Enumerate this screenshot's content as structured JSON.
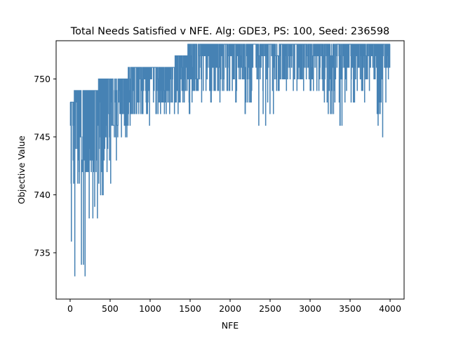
{
  "chart_data": {
    "type": "line",
    "title": "Total Needs Satisfied v NFE. Alg: GDE3, PS: 100, Seed: 236598",
    "xlabel": "NFE",
    "ylabel": "Objective Value",
    "xlim": [
      -175,
      4175
    ],
    "ylim": [
      731,
      753.3
    ],
    "xticks": [
      0,
      500,
      1000,
      1500,
      2000,
      2500,
      3000,
      3500,
      4000
    ],
    "yticks": [
      735,
      740,
      745,
      750
    ],
    "grid": false,
    "legend": "none",
    "series": [
      {
        "color": "#4682b4",
        "keypoints": [
          [
            0,
            735
          ],
          [
            100,
            732
          ],
          [
            200,
            732
          ],
          [
            300,
            737
          ],
          [
            400,
            740
          ],
          [
            500,
            741
          ],
          [
            600,
            744
          ],
          [
            700,
            745
          ],
          [
            800,
            746
          ],
          [
            1000,
            746
          ],
          [
            1200,
            747
          ],
          [
            1400,
            747
          ],
          [
            1600,
            748
          ],
          [
            1800,
            748
          ],
          [
            2000,
            749
          ],
          [
            2480,
            745
          ],
          [
            2600,
            749
          ],
          [
            3000,
            749
          ],
          [
            3530,
            745
          ],
          [
            3600,
            749
          ],
          [
            3940,
            745
          ],
          [
            4000,
            749
          ]
        ],
        "upper_keypoints": [
          [
            0,
            748
          ],
          [
            100,
            749
          ],
          [
            200,
            749
          ],
          [
            500,
            750
          ],
          [
            700,
            750
          ],
          [
            750,
            751
          ],
          [
            1300,
            751
          ],
          [
            1320,
            752
          ],
          [
            1600,
            753
          ],
          [
            1800,
            753
          ],
          [
            4000,
            753
          ]
        ],
        "typical_keypoints": [
          [
            0,
            742
          ],
          [
            100,
            743
          ],
          [
            200,
            743
          ],
          [
            300,
            744
          ],
          [
            400,
            745
          ],
          [
            500,
            747
          ],
          [
            700,
            748
          ],
          [
            1000,
            749
          ],
          [
            1300,
            750
          ],
          [
            1600,
            751
          ],
          [
            2000,
            751
          ],
          [
            2500,
            752
          ],
          [
            4000,
            752
          ]
        ]
      }
    ]
  }
}
